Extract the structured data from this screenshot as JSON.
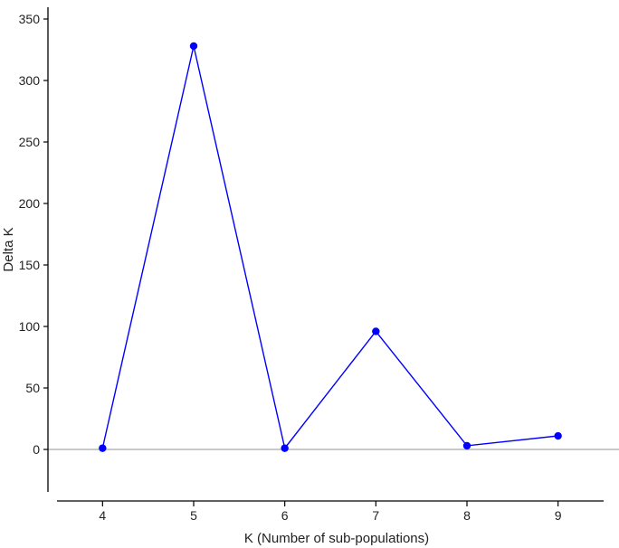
{
  "chart_data": {
    "type": "line",
    "xlabel": "K (Number of sub-populations)",
    "ylabel": "Delta K",
    "x": [
      4,
      5,
      6,
      7,
      8,
      9
    ],
    "x_ticks": [
      "4",
      "5",
      "6",
      "7",
      "8",
      "9"
    ],
    "y_ticks": [
      "0",
      "50",
      "100",
      "150",
      "200",
      "250",
      "300",
      "350"
    ],
    "xlim": [
      3.5,
      9.5
    ],
    "ylim": [
      -33,
      355
    ],
    "grid": false,
    "reference_line_y": 0,
    "series": [
      {
        "values": [
          1,
          328,
          1,
          96,
          3,
          11
        ],
        "color": "#0000ff"
      }
    ]
  }
}
